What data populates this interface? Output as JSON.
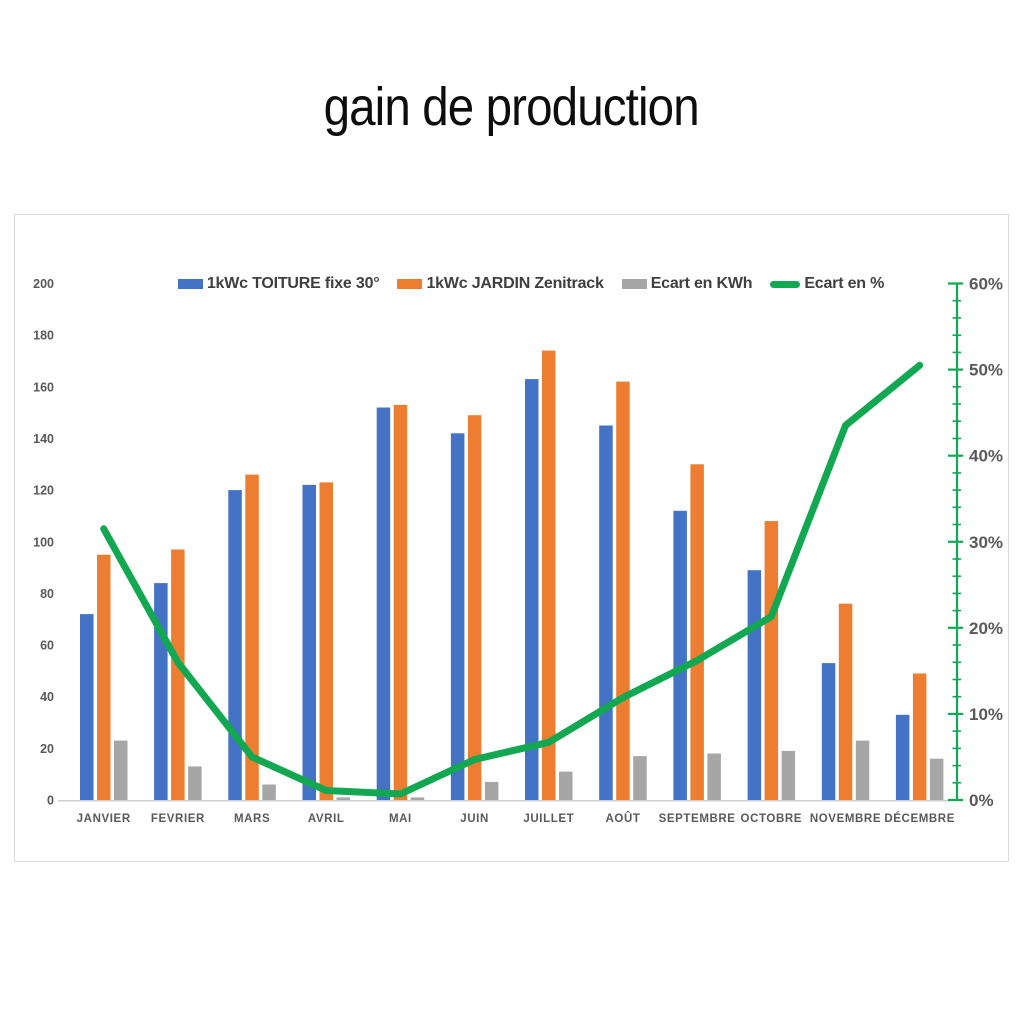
{
  "title": "gain de production",
  "chart_data": {
    "type": "combo bar+line",
    "title": "gain de production",
    "categories": [
      "JANVIER",
      "FEVRIER",
      "MARS",
      "AVRIL",
      "MAI",
      "JUIN",
      "JUILLET",
      "AOÛT",
      "SEPTEMBRE",
      "OCTOBRE",
      "NOVEMBRE",
      "DÉCEMBRE"
    ],
    "series": [
      {
        "name": "1kWc TOITURE fixe 30°",
        "type": "bar",
        "axis": "left",
        "color": "#4472c4",
        "values": [
          72,
          84,
          120,
          122,
          152,
          142,
          163,
          145,
          112,
          89,
          53,
          33
        ]
      },
      {
        "name": "1kWc JARDIN Zenitrack",
        "type": "bar",
        "axis": "left",
        "color": "#ed7d31",
        "values": [
          95,
          97,
          126,
          123,
          153,
          149,
          174,
          162,
          130,
          108,
          76,
          49
        ]
      },
      {
        "name": "Ecart en KWh",
        "type": "bar",
        "axis": "left",
        "color": "#a6a6a6",
        "values": [
          23,
          13,
          6,
          1,
          1,
          7,
          11,
          17,
          18,
          19,
          23,
          16
        ]
      },
      {
        "name": "Ecart en %",
        "type": "line",
        "axis": "right",
        "color": "#12a751",
        "values": [
          31.5,
          16,
          5,
          1.1,
          0.7,
          4.7,
          6.7,
          11.9,
          16.2,
          21.3,
          43.5,
          50.5
        ]
      }
    ],
    "left_axis": {
      "min": 0,
      "max": 200,
      "step": 20,
      "labels": [
        "0",
        "20",
        "40",
        "60",
        "80",
        "100",
        "120",
        "140",
        "160",
        "180",
        "200"
      ]
    },
    "right_axis": {
      "min": 0,
      "max": 60,
      "step": 10,
      "minor_step": 2,
      "labels": [
        "0%",
        "10%",
        "20%",
        "30%",
        "40%",
        "50%",
        "60%"
      ]
    },
    "grid": false,
    "legend_position": "top"
  },
  "colors": {
    "bar_blue": "#4472c4",
    "bar_orange": "#ed7d31",
    "bar_gray": "#a6a6a6",
    "line_green": "#12a751",
    "axis_text": "#595959",
    "legend_text": "#3f3f3f",
    "panel_border": "#dadada",
    "baseline": "#d0cece"
  }
}
